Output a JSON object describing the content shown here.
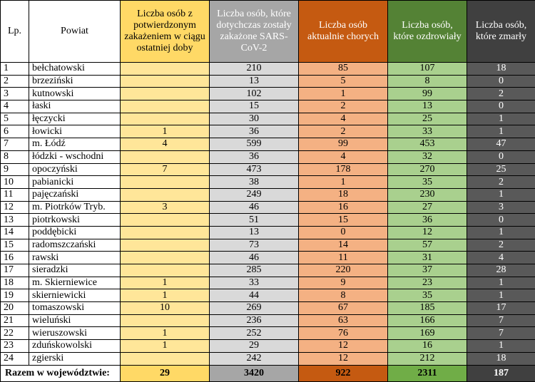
{
  "headers": {
    "lp": "Lp.",
    "powiat": "Powiat",
    "new": "Liczba osób z potwierdzonym zakażeniem w ciągu ostatniej doby",
    "total": "Liczba osób, które dotychczas zostały zakażone SARS-CoV-2",
    "sick": "Liczba osób aktualnie chorych",
    "recovered": "Liczba osób, które ozdrowiały",
    "dead": "Liczba osób, które zmarły"
  },
  "rows": [
    {
      "lp": "1",
      "powiat": "bełchatowski",
      "new": "",
      "total": "210",
      "sick": "85",
      "recovered": "107",
      "dead": "18"
    },
    {
      "lp": "2",
      "powiat": "brzeziński",
      "new": "",
      "total": "13",
      "sick": "5",
      "recovered": "8",
      "dead": "0"
    },
    {
      "lp": "3",
      "powiat": "kutnowski",
      "new": "",
      "total": "102",
      "sick": "1",
      "recovered": "99",
      "dead": "2"
    },
    {
      "lp": "4",
      "powiat": "łaski",
      "new": "",
      "total": "15",
      "sick": "2",
      "recovered": "13",
      "dead": "0"
    },
    {
      "lp": "5",
      "powiat": "łęczycki",
      "new": "",
      "total": "30",
      "sick": "4",
      "recovered": "25",
      "dead": "1"
    },
    {
      "lp": "6",
      "powiat": "łowicki",
      "new": "1",
      "total": "36",
      "sick": "2",
      "recovered": "33",
      "dead": "1"
    },
    {
      "lp": "7",
      "powiat": "m. Łódź",
      "new": "4",
      "total": "599",
      "sick": "99",
      "recovered": "453",
      "dead": "47"
    },
    {
      "lp": "8",
      "powiat": "łódzki - wschodni",
      "new": "",
      "total": "36",
      "sick": "4",
      "recovered": "32",
      "dead": "0"
    },
    {
      "lp": "9",
      "powiat": "opoczyński",
      "new": "7",
      "total": "473",
      "sick": "178",
      "recovered": "270",
      "dead": "25"
    },
    {
      "lp": "10",
      "powiat": "pabianicki",
      "new": "",
      "total": "38",
      "sick": "1",
      "recovered": "35",
      "dead": "2"
    },
    {
      "lp": "11",
      "powiat": "pajęczański",
      "new": "",
      "total": "249",
      "sick": "18",
      "recovered": "230",
      "dead": "1"
    },
    {
      "lp": "12",
      "powiat": "m. Piotrków Tryb.",
      "new": "3",
      "total": "46",
      "sick": "16",
      "recovered": "27",
      "dead": "3"
    },
    {
      "lp": "13",
      "powiat": "piotrkowski",
      "new": "",
      "total": "51",
      "sick": "15",
      "recovered": "36",
      "dead": "0"
    },
    {
      "lp": "14",
      "powiat": "poddębicki",
      "new": "",
      "total": "13",
      "sick": "0",
      "recovered": "12",
      "dead": "1"
    },
    {
      "lp": "15",
      "powiat": "radomszczański",
      "new": "",
      "total": "73",
      "sick": "14",
      "recovered": "57",
      "dead": "2"
    },
    {
      "lp": "16",
      "powiat": "rawski",
      "new": "",
      "total": "46",
      "sick": "11",
      "recovered": "31",
      "dead": "4"
    },
    {
      "lp": "17",
      "powiat": "sieradzki",
      "new": "",
      "total": "285",
      "sick": "220",
      "recovered": "37",
      "dead": "28"
    },
    {
      "lp": "18",
      "powiat": "m. Skierniewice",
      "new": "1",
      "total": "33",
      "sick": "9",
      "recovered": "23",
      "dead": "1"
    },
    {
      "lp": "19",
      "powiat": "skierniewicki",
      "new": "1",
      "total": "44",
      "sick": "8",
      "recovered": "35",
      "dead": "1"
    },
    {
      "lp": "20",
      "powiat": "tomaszowski",
      "new": "10",
      "total": "269",
      "sick": "67",
      "recovered": "185",
      "dead": "17"
    },
    {
      "lp": "21",
      "powiat": "wieluński",
      "new": "",
      "total": "236",
      "sick": "63",
      "recovered": "166",
      "dead": "7"
    },
    {
      "lp": "22",
      "powiat": "wieruszowski",
      "new": "1",
      "total": "252",
      "sick": "76",
      "recovered": "169",
      "dead": "7"
    },
    {
      "lp": "23",
      "powiat": "zduńskowolski",
      "new": "1",
      "total": "29",
      "sick": "12",
      "recovered": "16",
      "dead": "1"
    },
    {
      "lp": "24",
      "powiat": "zgierski",
      "new": "",
      "total": "242",
      "sick": "12",
      "recovered": "212",
      "dead": "18"
    }
  ],
  "summary": {
    "label": "Razem w województwie:",
    "new": "29",
    "total": "3420",
    "sick": "922",
    "recovered": "2311",
    "dead": "187"
  },
  "colors": {
    "new_header": "#ffd966",
    "total_header": "#a6a6a6",
    "sick_header": "#c55a11",
    "recovered_header": "#548235",
    "dead_header": "#404040"
  }
}
